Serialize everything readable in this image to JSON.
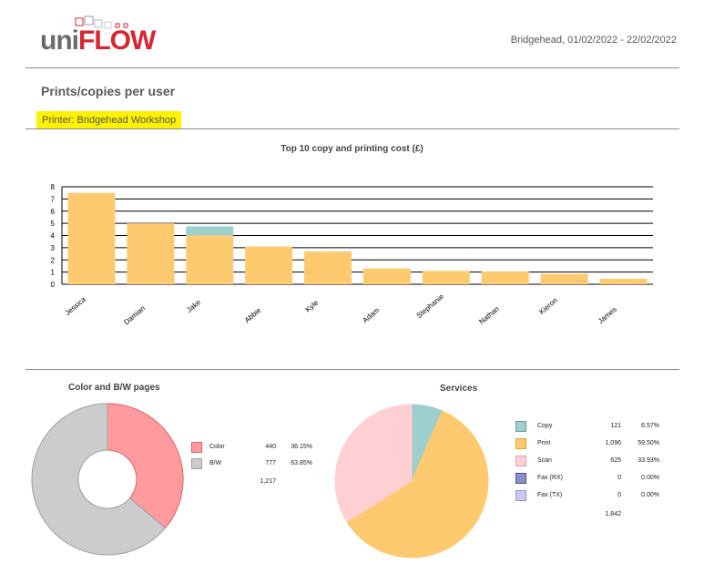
{
  "logo": {
    "uni": "uni",
    "flow": "FLOW"
  },
  "header": {
    "site_dates": "Bridgehead, 01/02/2022  -  22/02/2022"
  },
  "report": {
    "title": "Prints/copies per user",
    "printer": "Printer: Bridgehead Workshop"
  },
  "colors": {
    "print": "#fdca6f",
    "copy": "#9fcfcc",
    "scan": "#ffd0d3",
    "fax_rx": "#8e8ec8",
    "fax_tx": "#c9c9f2",
    "color_pages": "#ff9b9e",
    "bw_pages": "#cccccc"
  },
  "chart_data": [
    {
      "type": "bar",
      "title": "Top 10 copy and printing cost (£)",
      "categories": [
        "Jessica",
        "Damian",
        "Jake",
        "Abbie",
        "Kyle",
        "Adam",
        "Stephanie",
        "Nathan",
        "Kieron",
        "James"
      ],
      "series": [
        {
          "color": "#fdca6f",
          "values": [
            7.5,
            5.0,
            4.0,
            3.1,
            2.7,
            1.3,
            1.1,
            1.05,
            0.85,
            0.45
          ]
        },
        {
          "color": "#9fcfcc",
          "values": [
            0,
            0,
            0.75,
            0,
            0,
            0,
            0,
            0,
            0,
            0
          ]
        }
      ],
      "ylim": [
        0,
        8
      ],
      "yticks": [
        "0",
        "1",
        "2",
        "3",
        "4",
        "5",
        "6",
        "7",
        "8"
      ],
      "stacked": true
    },
    {
      "type": "pie",
      "title": "Color and B/W pages",
      "labels": [
        "Color",
        "B/W"
      ],
      "values": [
        440,
        777
      ],
      "value_labels": [
        "440",
        "777"
      ],
      "percent_labels": [
        "36.15%",
        "63.85%"
      ],
      "total": "1,217",
      "donut": true
    },
    {
      "type": "pie",
      "title": "Services",
      "labels": [
        "Copy",
        "Print",
        "Scan",
        "Fax (RX)",
        "Fax (TX)"
      ],
      "values": [
        121,
        1096,
        625,
        0,
        0
      ],
      "value_labels": [
        "121",
        "1,096",
        "625",
        "0",
        "0"
      ],
      "percent_labels": [
        "6.57%",
        "59.50%",
        "33.93%",
        "0.00%",
        "0.00%"
      ],
      "total": "1,842"
    }
  ]
}
